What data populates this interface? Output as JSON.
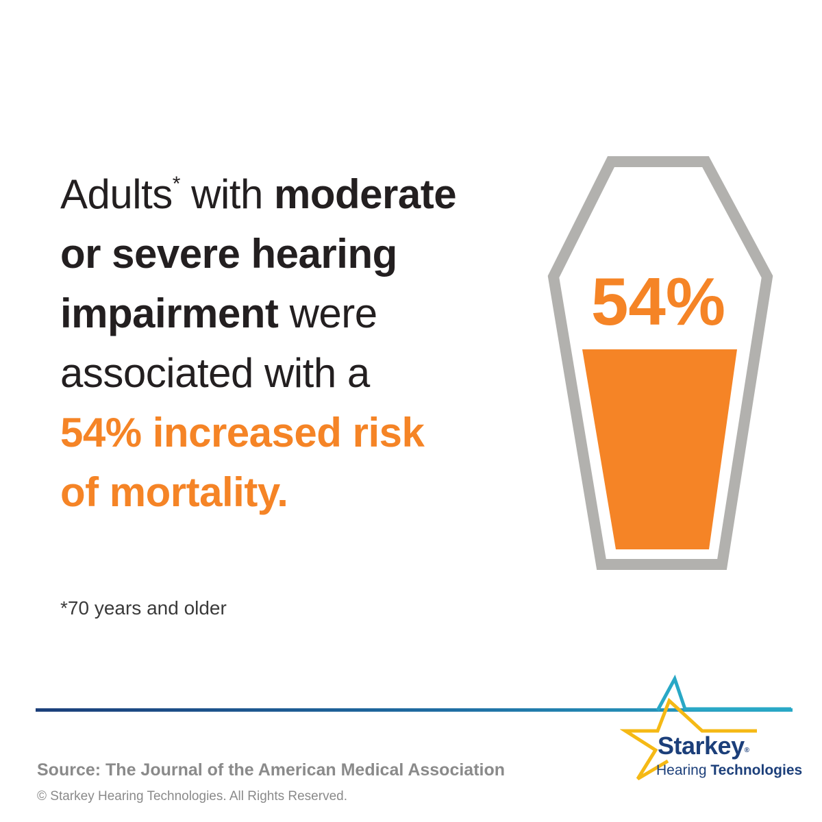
{
  "headline": {
    "line1_plain": "Adults",
    "line1_asterisk": "*",
    "line1_with": " with ",
    "line1_bold": "moderate",
    "line2_bold": "or severe hearing",
    "line3_bold": "impairment",
    "line3_plain": " were",
    "line4_plain": "associated with a",
    "line5_accent": "54% increased risk",
    "line6_accent": "of mortality."
  },
  "footnote": "*70 years and older",
  "graphic": {
    "label": "54%",
    "fill_percent": 54,
    "outline_color": "#b2b1ae",
    "fill_color": "#f58426"
  },
  "source": "Source: The Journal of the American Medical Association",
  "copyright": "© Starkey Hearing Technologies. All Rights Reserved.",
  "brand": {
    "name": "Starkey",
    "registered": "®",
    "sub_plain": "Hearing ",
    "sub_bold": "Technologies",
    "logo_icon": "star-icon"
  },
  "colors": {
    "accent": "#f58426",
    "text": "#231f20",
    "navy": "#1c3f7a",
    "teal": "#29a8c6",
    "gold": "#f5b915"
  }
}
